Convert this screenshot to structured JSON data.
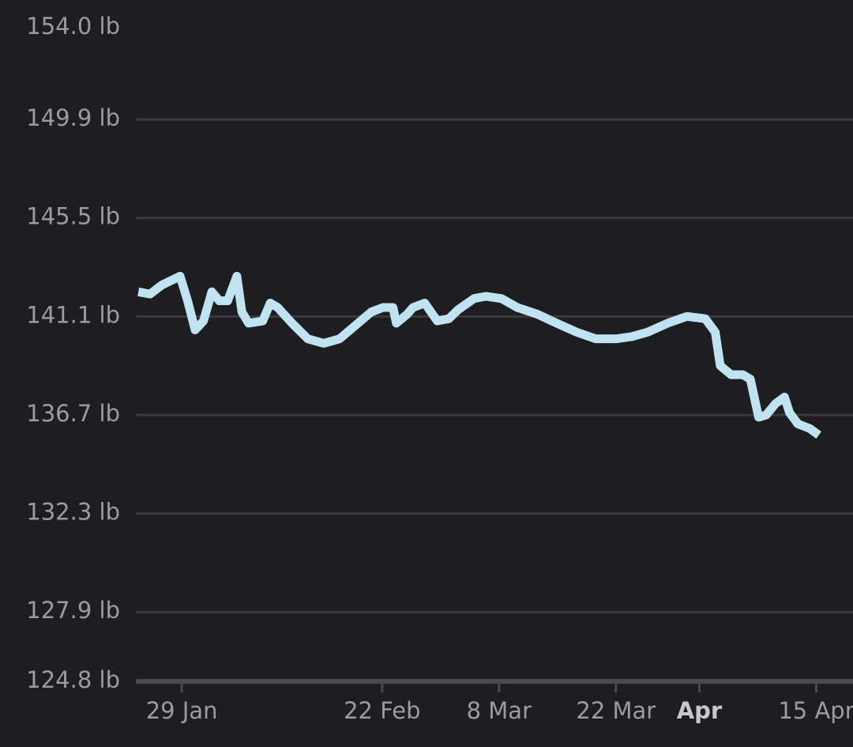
{
  "chart_data": {
    "type": "line",
    "x": [
      23.8,
      25.2,
      26.6,
      28.8,
      29.7,
      30.6,
      31.6,
      32.6,
      33.5,
      34.5,
      35.6,
      36.2,
      37.0,
      38.7,
      39.6,
      40.5,
      42.2,
      44.1,
      46.0,
      47.9,
      49.8,
      51.7,
      53.1,
      54.3,
      54.7,
      56.0,
      56.7,
      58.1,
      59.6,
      61.0,
      62.1,
      64.0,
      65.4,
      67.3,
      69.2,
      71.6,
      73.9,
      76.3,
      78.6,
      81.0,
      82.9,
      84.8,
      87.2,
      89.5,
      91.7,
      92.9,
      93.5,
      94.8,
      96.2,
      97.1,
      98.1,
      99.0,
      100.1,
      101.2,
      101.8,
      102.8,
      104.2,
      105.3
    ],
    "series": [
      {
        "color": "#bfe3f0",
        "values": [
          142.2,
          142.1,
          142.5,
          142.9,
          141.8,
          140.5,
          140.9,
          142.2,
          141.8,
          141.8,
          142.9,
          141.3,
          140.8,
          140.9,
          141.7,
          141.5,
          140.8,
          140.1,
          139.9,
          140.1,
          140.7,
          141.3,
          141.5,
          141.5,
          140.8,
          141.2,
          141.5,
          141.7,
          140.9,
          141.0,
          141.4,
          141.9,
          142.0,
          141.9,
          141.5,
          141.2,
          140.8,
          140.4,
          140.1,
          140.1,
          140.2,
          140.4,
          140.8,
          141.1,
          141.0,
          140.4,
          138.9,
          138.5,
          138.5,
          138.3,
          136.6,
          136.7,
          137.2,
          137.5,
          136.8,
          136.3,
          136.1,
          135.8
        ]
      }
    ],
    "xlim": [
      23.5,
      109.4
    ],
    "xticks": [
      {
        "value": 29,
        "label": "29 Jan"
      },
      {
        "value": 53,
        "label": "22 Feb"
      },
      {
        "value": 67,
        "label": "8 Mar"
      },
      {
        "value": 81,
        "label": "22 Mar"
      },
      {
        "value": 91,
        "label": "Apr"
      },
      {
        "value": 105,
        "label": "15 Apr"
      }
    ],
    "ylim": [
      124.8,
      154.0
    ],
    "yticks": [
      {
        "value": 154.0,
        "label": "154.0 lb"
      },
      {
        "value": 149.9,
        "label": "149.9 lb"
      },
      {
        "value": 145.5,
        "label": "145.5 lb"
      },
      {
        "value": 141.1,
        "label": "141.1 lb"
      },
      {
        "value": 136.7,
        "label": "136.7 lb"
      },
      {
        "value": 132.3,
        "label": "132.3 lb"
      },
      {
        "value": 127.9,
        "label": "127.9 lb"
      },
      {
        "value": 124.8,
        "label": "124.8 lb"
      }
    ],
    "grid": true
  }
}
